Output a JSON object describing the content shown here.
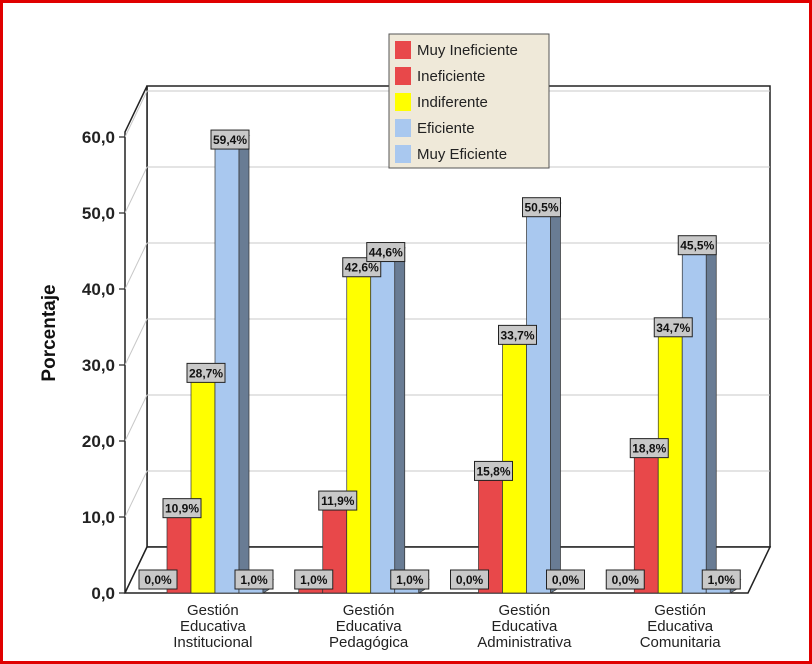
{
  "chart_data": {
    "type": "bar",
    "ylabel": "Porcentaje",
    "xlabel": "",
    "ylim": [
      0,
      60
    ],
    "yticks": [
      "0,0",
      "10,0",
      "20,0",
      "30,0",
      "40,0",
      "50,0",
      "60,0"
    ],
    "categories": [
      [
        "Gestión",
        "Educativa",
        "Institucional"
      ],
      [
        "Gestión",
        "Educativa",
        "Pedagógica"
      ],
      [
        "Gestión",
        "Educativa",
        "Administrativa"
      ],
      [
        "Gestión",
        "Educativa",
        "Comunitaria"
      ]
    ],
    "series": [
      {
        "name": "Muy Ineficiente",
        "color": "#e8484a",
        "values": [
          0.0,
          1.0,
          0.0,
          0.0
        ],
        "labels": [
          "0,0%",
          "1,0%",
          "0,0%",
          "0,0%"
        ]
      },
      {
        "name": "Ineficiente",
        "color": "#e8484a",
        "values": [
          10.9,
          11.9,
          15.8,
          18.8
        ],
        "labels": [
          "10,9%",
          "11,9%",
          "15,8%",
          "18,8%"
        ]
      },
      {
        "name": "Indiferente",
        "color": "#ffff00",
        "values": [
          28.7,
          42.6,
          33.7,
          34.7
        ],
        "labels": [
          "28,7%",
          "42,6%",
          "33,7%",
          "34,7%"
        ]
      },
      {
        "name": "Eficiente",
        "color": "#a9c8ef",
        "values": [
          59.4,
          44.6,
          50.5,
          45.5
        ],
        "labels": [
          "59,4%",
          "44,6%",
          "50,5%",
          "45,5%"
        ]
      },
      {
        "name": "Muy Eficiente",
        "color": "#a9c8ef",
        "values": [
          1.0,
          1.0,
          0.0,
          1.0
        ],
        "labels": [
          "1,0%",
          "1,0%",
          "0,0%",
          "1,0%"
        ]
      }
    ],
    "grid": true,
    "legend_position": "top-center",
    "frame_color": "#e00000"
  }
}
